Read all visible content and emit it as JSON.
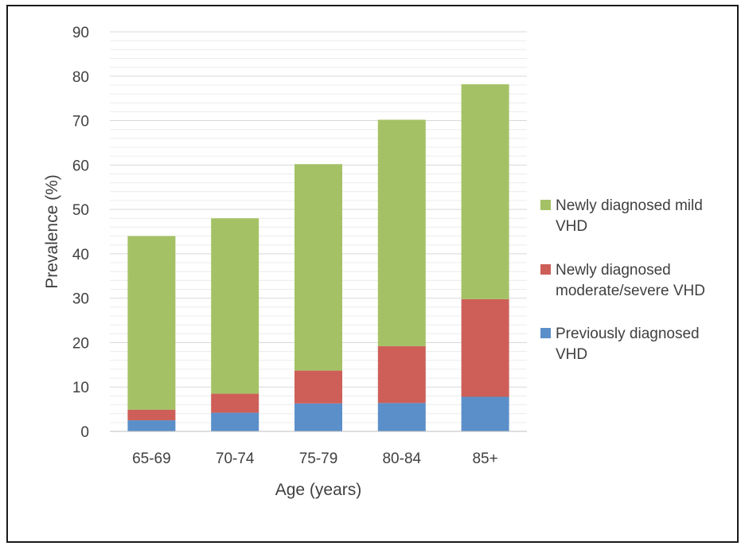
{
  "chart_data": {
    "type": "bar",
    "stacked": true,
    "title": "",
    "xlabel": "Age (years)",
    "ylabel": "Prevalence (%)",
    "ylim": [
      0,
      90
    ],
    "yticks": [
      0,
      10,
      20,
      30,
      40,
      50,
      60,
      70,
      80,
      90
    ],
    "grid": true,
    "legend_position": "right",
    "categories": [
      "65-69",
      "70-74",
      "75-79",
      "80-84",
      "85+"
    ],
    "series": [
      {
        "name": "Previously diagnosed VHD",
        "legend_lines": [
          "Previously diagnosed",
          "VHD"
        ],
        "color": "#5b8fc9",
        "values": [
          2.5,
          4.2,
          6.3,
          6.4,
          7.8
        ]
      },
      {
        "name": "Newly diagnosed moderate/severe VHD",
        "legend_lines": [
          "Newly diagnosed",
          "moderate/severe VHD"
        ],
        "color": "#cd5f58",
        "values": [
          2.4,
          4.3,
          7.4,
          12.8,
          22.0
        ]
      },
      {
        "name": "Newly diagnosed mild VHD",
        "legend_lines": [
          "Newly diagnosed mild",
          "VHD"
        ],
        "color": "#a4c265",
        "values": [
          39.1,
          39.5,
          46.5,
          51.0,
          48.4
        ]
      }
    ]
  }
}
